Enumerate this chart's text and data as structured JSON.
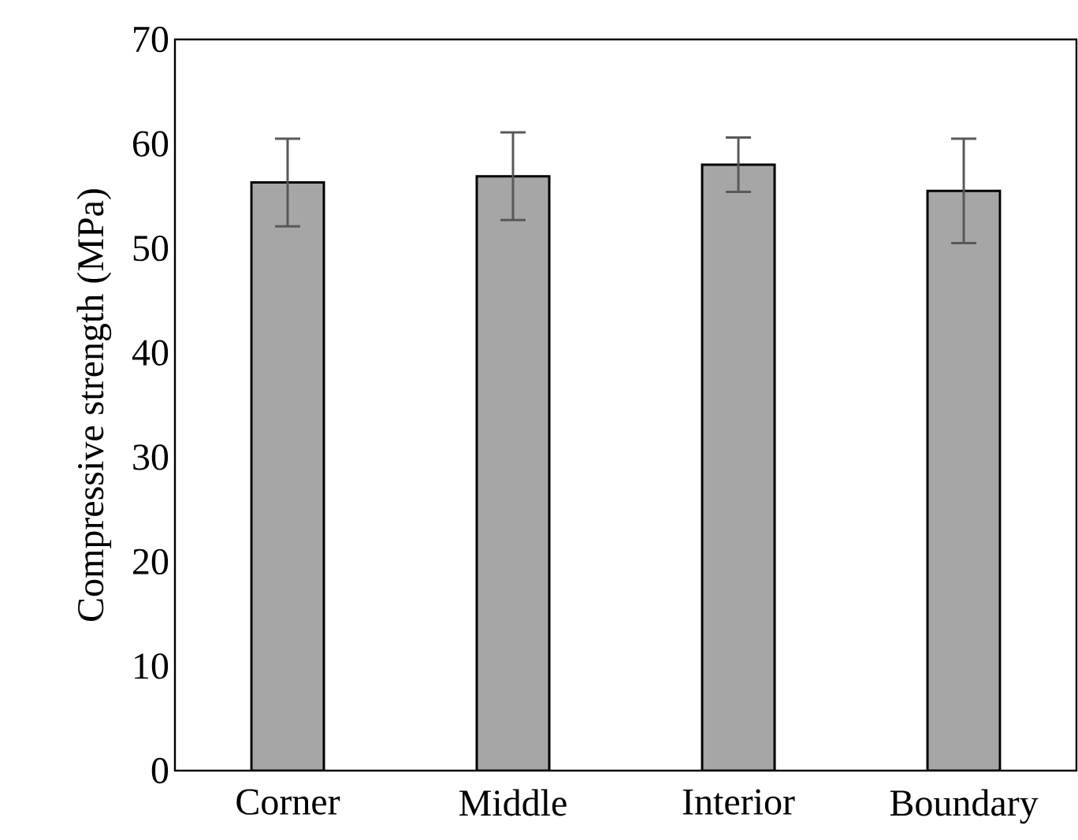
{
  "chart_data": {
    "type": "bar",
    "ylabel": "Compressive strength (MPa)",
    "categories": [
      "Corner",
      "Middle",
      "Interior",
      "Boundary"
    ],
    "values": [
      56.3,
      56.9,
      58.0,
      55.5
    ],
    "errors": [
      4.2,
      4.2,
      2.6,
      5.0
    ],
    "color": "#a6a6a6",
    "ylim": [
      0,
      70
    ],
    "yticks": [
      0,
      10,
      20,
      30,
      40,
      50,
      60,
      70
    ],
    "grid": false
  }
}
